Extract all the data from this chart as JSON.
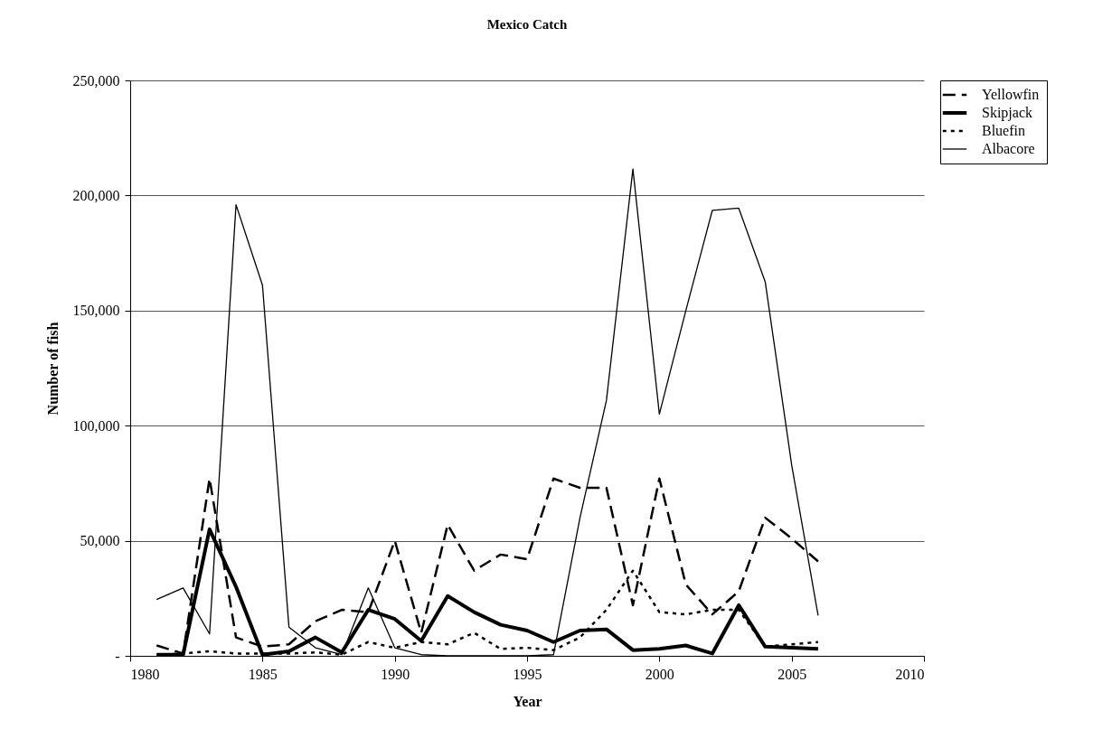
{
  "chart_data": {
    "type": "line",
    "title": "Mexico Catch",
    "xlabel": "Year",
    "ylabel": "Number of fish",
    "x": [
      1981,
      1982,
      1983,
      1984,
      1985,
      1986,
      1987,
      1988,
      1989,
      1990,
      1991,
      1992,
      1993,
      1994,
      1995,
      1996,
      1997,
      1998,
      1999,
      2000,
      2001,
      2002,
      2003,
      2004,
      2005,
      2006
    ],
    "series": [
      {
        "name": "Yellowfin",
        "color": "#000000",
        "line_style": "dashed",
        "values": [
          4500,
          1000,
          77000,
          8000,
          4000,
          5000,
          15000,
          20000,
          19000,
          50000,
          10000,
          57000,
          37000,
          44000,
          42000,
          77000,
          73000,
          73000,
          22000,
          77000,
          31000,
          18000,
          28000,
          60000,
          51000,
          41000
        ]
      },
      {
        "name": "Skipjack",
        "color": "#000000",
        "line_style": "solid",
        "values": [
          500,
          500,
          55000,
          30000,
          500,
          2000,
          8000,
          1500,
          20000,
          16000,
          6500,
          26000,
          19000,
          13500,
          11000,
          6000,
          11000,
          11500,
          2500,
          3000,
          4500,
          1000,
          22000,
          4000,
          3500,
          3000
        ]
      },
      {
        "name": "Bluefin",
        "color": "#000000",
        "line_style": "dotted",
        "values": [
          500,
          1000,
          2000,
          1000,
          1000,
          1000,
          1500,
          500,
          6000,
          3500,
          6000,
          5000,
          10000,
          3000,
          3500,
          2500,
          8000,
          20000,
          37000,
          19000,
          18000,
          20000,
          20000,
          4000,
          5000,
          6000
        ]
      },
      {
        "name": "Albacore",
        "color": "#000000",
        "line_style": "solid",
        "values": [
          24500,
          29500,
          9500,
          196000,
          161000,
          12500,
          3500,
          500,
          29500,
          3500,
          500,
          0,
          0,
          0,
          0,
          500,
          60000,
          111000,
          211500,
          105000,
          150000,
          193500,
          194500,
          162500,
          83000,
          17500
        ]
      }
    ],
    "xlim": [
      1980,
      2010
    ],
    "xticks": [
      1980,
      1985,
      1990,
      1995,
      2000,
      2005,
      2010
    ],
    "ylim": [
      0,
      250000
    ],
    "yticks": [
      {
        "value": 0,
        "label": "-"
      },
      {
        "value": 50000,
        "label": "50,000"
      },
      {
        "value": 100000,
        "label": "100,000"
      },
      {
        "value": 150000,
        "label": "150,000"
      },
      {
        "value": 200000,
        "label": "200,000"
      },
      {
        "value": 250000,
        "label": "250,000"
      }
    ],
    "grid": "y",
    "legend": "right"
  }
}
